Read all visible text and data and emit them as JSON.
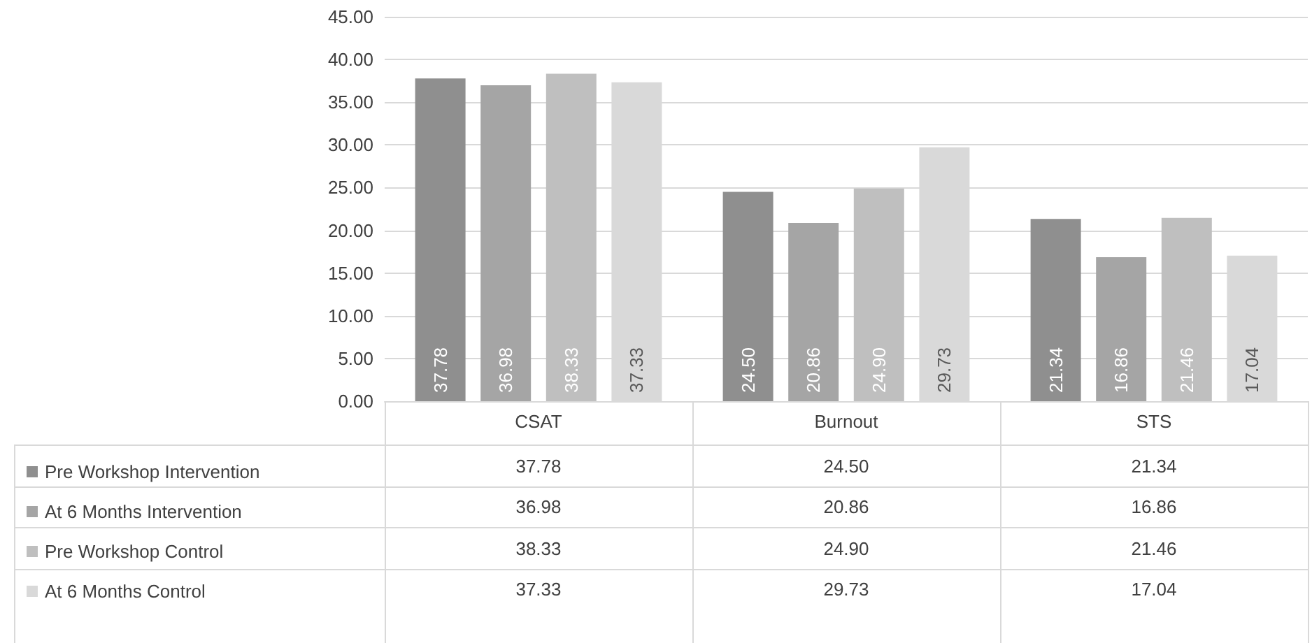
{
  "chart_data": {
    "type": "bar",
    "categories": [
      "CSAT",
      "Burnout",
      "STS"
    ],
    "series": [
      {
        "name": "Pre Workshop Intervention",
        "color": "#8f8f8f",
        "values": [
          37.78,
          24.5,
          21.34
        ],
        "value_labels": [
          "37.78",
          "24.50",
          "21.34"
        ]
      },
      {
        "name": "At 6 Months Intervention",
        "color": "#a5a5a5",
        "values": [
          36.98,
          20.86,
          16.86
        ],
        "value_labels": [
          "36.98",
          "20.86",
          "16.86"
        ]
      },
      {
        "name": "Pre Workshop Control",
        "color": "#bfbfbf",
        "values": [
          38.33,
          24.9,
          21.46
        ],
        "value_labels": [
          "38.33",
          "24.90",
          "21.46"
        ]
      },
      {
        "name": "At 6 Months Control",
        "color": "#d9d9d9",
        "values": [
          37.33,
          29.73,
          17.04
        ],
        "value_labels": [
          "37.33",
          "29.73",
          "17.04"
        ]
      }
    ],
    "ylim": [
      0,
      45
    ],
    "yticks": [
      {
        "value": 0,
        "label": "0.00"
      },
      {
        "value": 5,
        "label": "5.00"
      },
      {
        "value": 10,
        "label": "10.00"
      },
      {
        "value": 15,
        "label": "15.00"
      },
      {
        "value": 20,
        "label": "20.00"
      },
      {
        "value": 25,
        "label": "25.00"
      },
      {
        "value": 30,
        "label": "30.00"
      },
      {
        "value": 35,
        "label": "35.00"
      },
      {
        "value": 40,
        "label": "40.00"
      },
      {
        "value": 45,
        "label": "45.00"
      }
    ],
    "grid": "y",
    "legend": "bottom left"
  }
}
